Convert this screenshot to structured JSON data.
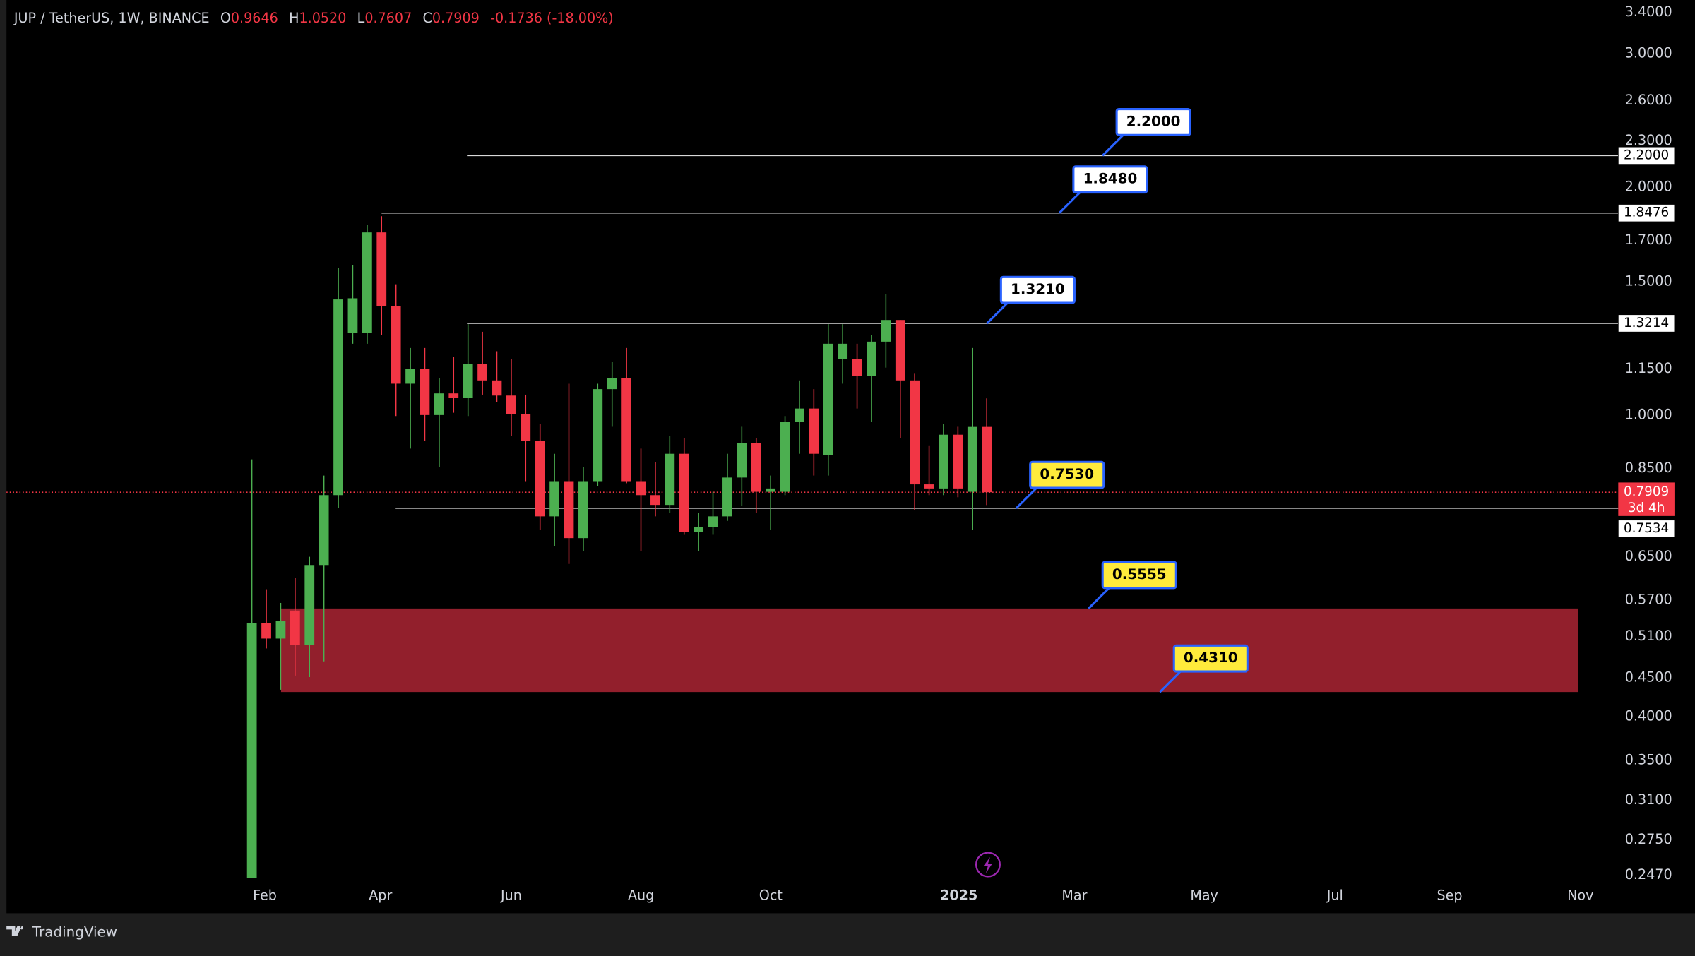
{
  "chart_data": {
    "type": "candlestick",
    "title": "JUP / TetherUS, 1W, BINANCE",
    "ohlc": [
      {
        "key": "O",
        "text": "0.9646"
      },
      {
        "key": "H",
        "text": "1.0520"
      },
      {
        "key": "L",
        "text": "0.7607"
      },
      {
        "key": "C",
        "text": "0.7909"
      }
    ],
    "change": "-0.1736 (-18.00%)",
    "y_scale": "log",
    "up_color": "#4caf50",
    "down_color": "#f23645",
    "open": [
      0.245,
      0.531,
      0.507,
      0.552,
      0.497,
      0.634,
      0.784,
      1.283,
      1.283,
      1.742,
      1.393,
      1.1,
      1.151,
      1.0,
      1.068,
      1.054,
      1.167,
      1.111,
      1.061,
      1.003,
      0.924,
      0.735,
      0.818,
      0.688,
      0.818,
      1.082,
      1.118,
      0.818,
      0.784,
      0.761,
      0.889,
      0.701,
      0.711,
      0.735,
      0.827,
      0.918,
      0.792,
      0.792,
      0.98,
      1.02,
      0.886,
      1.186,
      1.186,
      1.125,
      1.25,
      1.335,
      1.111,
      0.81,
      0.8,
      0.942,
      0.792,
      0.9646
    ],
    "high": [
      0.874,
      0.589,
      0.565,
      0.609,
      0.65,
      0.832,
      1.563,
      1.578,
      1.782,
      1.83,
      1.488,
      1.226,
      1.226,
      1.118,
      1.194,
      1.318,
      1.288,
      1.214,
      1.186,
      1.064,
      0.974,
      0.889,
      1.1,
      0.854,
      1.1,
      1.175,
      1.226,
      0.903,
      0.866,
      0.939,
      0.933,
      0.742,
      0.792,
      0.889,
      0.965,
      0.933,
      0.832,
      0.997,
      1.111,
      1.082,
      1.318,
      1.318,
      1.242,
      1.275,
      1.444,
      1.335,
      1.136,
      0.912,
      0.974,
      0.965,
      1.226,
      1.052
    ],
    "low": [
      0.245,
      0.492,
      0.434,
      0.453,
      0.451,
      0.473,
      0.754,
      1.242,
      1.242,
      1.275,
      0.997,
      0.903,
      0.924,
      0.854,
      1.007,
      0.997,
      1.064,
      1.04,
      0.939,
      0.818,
      0.706,
      0.672,
      0.636,
      0.661,
      0.805,
      0.965,
      0.813,
      0.661,
      0.735,
      0.742,
      0.695,
      0.661,
      0.695,
      0.725,
      0.759,
      0.742,
      0.706,
      0.784,
      0.889,
      0.832,
      0.832,
      1.1,
      1.02,
      0.98,
      1.155,
      0.933,
      0.749,
      0.784,
      0.784,
      0.779,
      0.706,
      0.7607
    ],
    "close": [
      0.531,
      0.507,
      0.535,
      0.497,
      0.634,
      0.784,
      1.421,
      1.426,
      1.742,
      1.393,
      1.1,
      1.151,
      1.0,
      1.068,
      1.054,
      1.167,
      1.111,
      1.061,
      1.003,
      0.924,
      0.735,
      0.818,
      0.688,
      0.818,
      1.082,
      1.118,
      0.818,
      0.784,
      0.761,
      0.889,
      0.701,
      0.711,
      0.735,
      0.827,
      0.918,
      0.792,
      0.8,
      0.98,
      1.02,
      0.889,
      1.242,
      1.242,
      1.125,
      1.25,
      1.335,
      1.111,
      0.81,
      0.8,
      0.942,
      0.8,
      0.9646,
      0.7909
    ],
    "ylim": [
      0.2405,
      3.53
    ],
    "yticks": [
      {
        "value": 3.4,
        "label": "3.4000"
      },
      {
        "value": 3.0,
        "label": "3.0000"
      },
      {
        "value": 2.6,
        "label": "2.6000"
      },
      {
        "value": 2.3,
        "label": "2.3000"
      },
      {
        "value": 2.0,
        "label": "2.0000"
      },
      {
        "value": 1.7,
        "label": "1.7000"
      },
      {
        "value": 1.5,
        "label": "1.5000"
      },
      {
        "value": 1.15,
        "label": "1.1500"
      },
      {
        "value": 1.0,
        "label": "1.0000"
      },
      {
        "value": 0.85,
        "label": "0.8500"
      },
      {
        "value": 0.65,
        "label": "0.6500"
      },
      {
        "value": 0.57,
        "label": "0.5700"
      },
      {
        "value": 0.51,
        "label": "0.5100"
      },
      {
        "value": 0.45,
        "label": "0.4500"
      },
      {
        "value": 0.4,
        "label": "0.4000"
      },
      {
        "value": 0.35,
        "label": "0.3500"
      },
      {
        "value": 0.31,
        "label": "0.3100"
      },
      {
        "value": 0.275,
        "label": "0.2750"
      },
      {
        "value": 0.247,
        "label": "0.2470"
      }
    ],
    "xticks": [
      "Feb",
      "Apr",
      "Jun",
      "Aug",
      "Oct",
      "2025",
      "Mar",
      "May",
      "Jul",
      "Sep",
      "Nov"
    ],
    "levels": [
      {
        "value": 2.2,
        "label": "2.2000"
      },
      {
        "value": 1.8476,
        "label": "1.8476"
      },
      {
        "value": 1.3214,
        "label": "1.3214"
      },
      {
        "value": 0.7534,
        "label": "0.7534"
      }
    ],
    "last_price": {
      "value": 0.7909,
      "label": "0.7909",
      "countdown": "3d 4h"
    },
    "callouts": [
      {
        "value": 2.2,
        "label": "2.2000",
        "color": "#ffffff"
      },
      {
        "value": 1.848,
        "label": "1.8480",
        "color": "#ffffff"
      },
      {
        "value": 1.321,
        "label": "1.3210",
        "color": "#ffffff"
      },
      {
        "value": 0.753,
        "label": "0.7530",
        "color": "#ffeb3b"
      },
      {
        "value": 0.5555,
        "label": "0.5555",
        "color": "#ffeb3b"
      },
      {
        "value": 0.431,
        "label": "0.4310",
        "color": "#ffeb3b"
      }
    ],
    "zone_color": "#921f2c",
    "brand": "TradingView"
  }
}
